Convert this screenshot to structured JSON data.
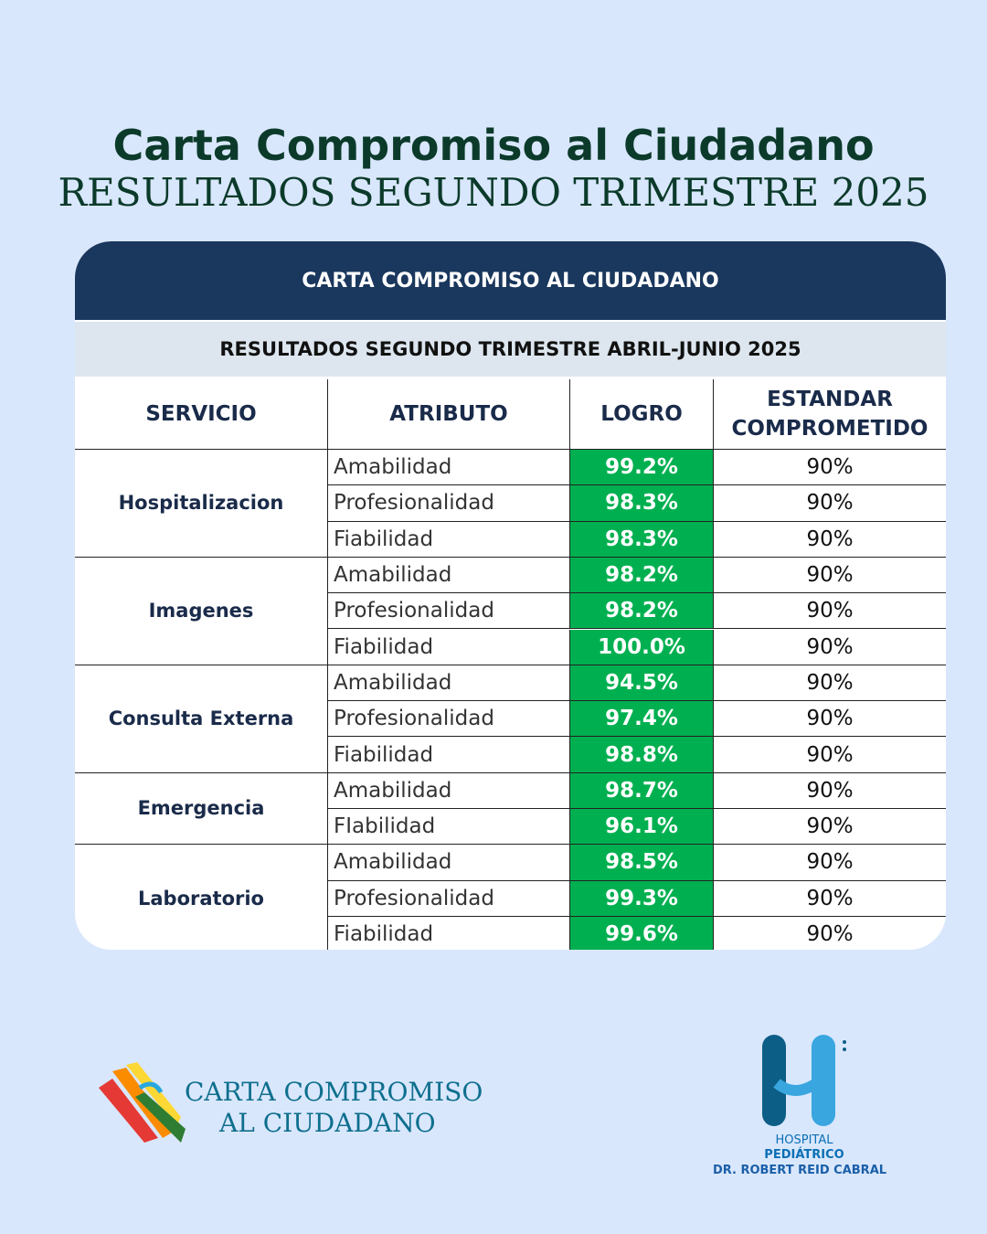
{
  "header": {
    "title": "Carta Compromiso al Ciudadano",
    "subtitle": "RESULTADOS SEGUNDO TRIMESTRE 2025"
  },
  "table": {
    "title": "CARTA COMPROMISO AL CIUDADANO",
    "subtitle": "RESULTADOS SEGUNDO TRIMESTRE ABRIL-JUNIO 2025",
    "columns": [
      "SERVICIO",
      "ATRIBUTO",
      "LOGRO",
      "ESTANDAR COMPROMETIDO"
    ],
    "groups": [
      {
        "service": "Hospitalizacion",
        "rows": [
          [
            "Amabilidad",
            "99.2%",
            "90%"
          ],
          [
            "Profesionalidad",
            "98.3%",
            "90%"
          ],
          [
            "Fiabilidad",
            "98.3%",
            "90%"
          ]
        ]
      },
      {
        "service": "Imagenes",
        "rows": [
          [
            "Amabilidad",
            "98.2%",
            "90%"
          ],
          [
            "Profesionalidad",
            "98.2%",
            "90%"
          ],
          [
            "Fiabilidad",
            "100.0%",
            "90%"
          ]
        ]
      },
      {
        "service": "Consulta Externa",
        "rows": [
          [
            "Amabilidad",
            "94.5%",
            "90%"
          ],
          [
            "Profesionalidad",
            "97.4%",
            "90%"
          ],
          [
            "Fiabilidad",
            "98.8%",
            "90%"
          ]
        ]
      },
      {
        "service": "Emergencia",
        "rows": [
          [
            "Amabilidad",
            "98.7%",
            "90%"
          ],
          [
            "FIabilidad",
            "96.1%",
            "90%"
          ]
        ]
      },
      {
        "service": "Laboratorio",
        "rows": [
          [
            "Amabilidad",
            "98.5%",
            "90%"
          ],
          [
            "Profesionalidad",
            "99.3%",
            "90%"
          ],
          [
            "Fiabilidad",
            "99.6%",
            "90%"
          ]
        ]
      }
    ]
  },
  "footer": {
    "left_logo": [
      "CARTA COMPROMISO",
      "AL CIUDADANO"
    ],
    "right_logo": [
      "HOSPITAL",
      "PEDIÁTRICO",
      "DR. ROBERT REID CABRAL"
    ]
  }
}
